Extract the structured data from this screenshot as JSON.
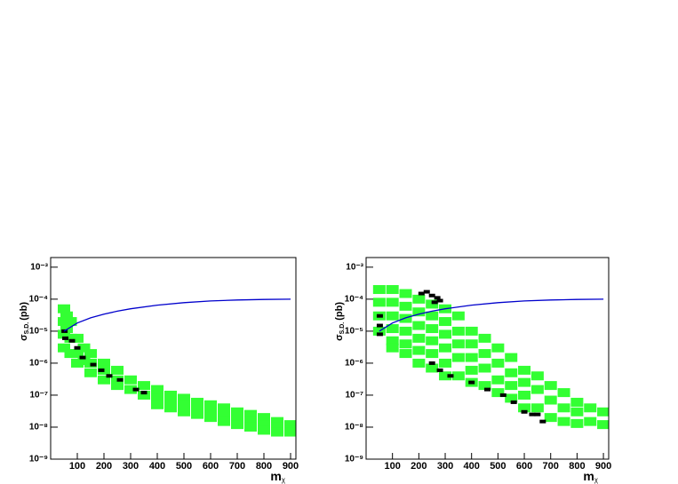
{
  "chart_data": [
    {
      "type": "scatter",
      "log_y": true,
      "x_label": "m",
      "x_label_sub": "χ",
      "y_label": "σ",
      "y_label_sub": "S.D.",
      "y_label_unit": "(pb)",
      "xlim": [
        0,
        920
      ],
      "xticks": [
        100,
        200,
        300,
        400,
        500,
        600,
        700,
        800,
        900
      ],
      "ylim": [
        1e-09,
        0.002
      ],
      "yticks": [
        {
          "value": 1e-09,
          "label": "10⁻⁹"
        },
        {
          "value": 1e-08,
          "label": "10⁻⁸"
        },
        {
          "value": 1e-07,
          "label": "10⁻⁷"
        },
        {
          "value": 1e-06,
          "label": "10⁻⁶"
        },
        {
          "value": 1e-05,
          "label": "10⁻⁵"
        },
        {
          "value": 0.0001,
          "label": "10⁻⁴"
        },
        {
          "value": 0.001,
          "label": "10⁻³"
        }
      ],
      "series": [
        {
          "style": "markers",
          "color": "#33ff33",
          "x": [
            50,
            50,
            50,
            50,
            60,
            60,
            75,
            75,
            75,
            100,
            100,
            100,
            125,
            125,
            150,
            150,
            150,
            200,
            200,
            200,
            250,
            250,
            250,
            300,
            300,
            350,
            350,
            400,
            400,
            400,
            450,
            450,
            450,
            500,
            500,
            500,
            550,
            550,
            550,
            600,
            600,
            600,
            650,
            650,
            650,
            700,
            700,
            700,
            750,
            750,
            750,
            800,
            800,
            800,
            850,
            850,
            850,
            900,
            900,
            900
          ],
          "values": [
            5e-05,
            2e-05,
            8e-06,
            3e-06,
            3e-05,
            1.2e-05,
            2e-05,
            6e-06,
            2e-06,
            6e-06,
            2e-06,
            1e-06,
            3e-06,
            1.2e-06,
            2e-06,
            1e-06,
            5e-07,
            1e-06,
            6e-07,
            3e-07,
            6e-07,
            3e-07,
            2e-07,
            3e-07,
            1.5e-07,
            2e-07,
            1e-07,
            1.5e-07,
            8e-08,
            5e-08,
            1e-07,
            6e-08,
            4e-08,
            8e-08,
            5e-08,
            3e-08,
            6e-08,
            4e-08,
            2.5e-08,
            5e-08,
            3e-08,
            2e-08,
            4e-08,
            2.5e-08,
            1.5e-08,
            3e-08,
            2e-08,
            1.2e-08,
            2.5e-08,
            1.5e-08,
            1e-08,
            2e-08,
            1.2e-08,
            8e-09,
            1.5e-08,
            1e-08,
            7e-09,
            1.2e-08,
            8e-09,
            7e-09
          ]
        },
        {
          "style": "markers",
          "color": "#000000",
          "x": [
            52,
            55,
            80,
            100,
            120,
            160,
            190,
            220,
            260,
            320,
            350
          ],
          "values": [
            1e-05,
            6e-06,
            5e-06,
            3e-06,
            1.5e-06,
            9e-07,
            6e-07,
            4e-07,
            3e-07,
            1.5e-07,
            1.2e-07
          ]
        },
        {
          "style": "line",
          "color": "#0000cc",
          "x": [
            50,
            100,
            150,
            200,
            250,
            300,
            400,
            500,
            600,
            700,
            800,
            900
          ],
          "values": [
            1e-05,
            1.8e-05,
            2.6e-05,
            3.4e-05,
            4.2e-05,
            5e-05,
            6.5e-05,
            7.8e-05,
            8.8e-05,
            9.4e-05,
            9.8e-05,
            0.0001
          ]
        }
      ]
    },
    {
      "type": "scatter",
      "log_y": true,
      "x_label": "m",
      "x_label_sub": "χ",
      "y_label": "σ",
      "y_label_sub": "S.D.",
      "y_label_unit": "(pb)",
      "xlim": [
        0,
        920
      ],
      "xticks": [
        100,
        200,
        300,
        400,
        500,
        600,
        700,
        800,
        900
      ],
      "ylim": [
        1e-09,
        0.002
      ],
      "yticks": [
        {
          "value": 1e-09,
          "label": "10⁻⁹"
        },
        {
          "value": 1e-08,
          "label": "10⁻⁸"
        },
        {
          "value": 1e-07,
          "label": "10⁻⁷"
        },
        {
          "value": 1e-06,
          "label": "10⁻⁶"
        },
        {
          "value": 1e-05,
          "label": "10⁻⁵"
        },
        {
          "value": 0.0001,
          "label": "10⁻⁴"
        },
        {
          "value": 0.001,
          "label": "10⁻³"
        }
      ],
      "series": [
        {
          "style": "markers",
          "color": "#33ff33",
          "x": [
            50,
            50,
            50,
            50,
            100,
            100,
            100,
            100,
            100,
            100,
            150,
            150,
            150,
            150,
            150,
            150,
            200,
            200,
            200,
            200,
            200,
            200,
            250,
            250,
            250,
            250,
            250,
            250,
            300,
            300,
            300,
            300,
            300,
            300,
            350,
            350,
            350,
            350,
            350,
            400,
            400,
            400,
            400,
            400,
            450,
            450,
            450,
            450,
            500,
            500,
            500,
            500,
            550,
            550,
            550,
            550,
            600,
            600,
            600,
            600,
            650,
            650,
            650,
            700,
            700,
            700,
            750,
            750,
            750,
            800,
            800,
            800,
            850,
            850,
            900,
            900
          ],
          "values": [
            0.0002,
            8e-05,
            3e-05,
            1e-05,
            0.0002,
            8e-05,
            3e-05,
            1.2e-05,
            5e-06,
            3e-06,
            0.00015,
            6e-05,
            2.5e-05,
            1e-05,
            4e-06,
            2e-06,
            0.0001,
            4e-05,
            1.5e-05,
            6e-06,
            2.5e-06,
            1e-06,
            7e-05,
            3e-05,
            1.2e-05,
            5e-06,
            2e-06,
            7e-07,
            5e-05,
            2e-05,
            8e-06,
            3e-06,
            1e-06,
            4e-07,
            3e-05,
            1e-05,
            4e-06,
            1.5e-06,
            4e-07,
            1e-05,
            4e-06,
            1.5e-06,
            6e-07,
            2.5e-07,
            6e-06,
            2e-06,
            7e-07,
            2e-07,
            3e-06,
            1e-06,
            3e-07,
            1.2e-07,
            1.5e-06,
            5e-07,
            2e-07,
            8e-08,
            6e-07,
            2.5e-07,
            1e-07,
            4e-08,
            4e-07,
            1.5e-07,
            4e-08,
            2e-07,
            7e-08,
            2e-08,
            1.2e-07,
            4e-08,
            1.5e-08,
            6e-08,
            3e-08,
            1.3e-08,
            4e-08,
            1.5e-08,
            3e-08,
            1.2e-08
          ]
        },
        {
          "style": "markers",
          "color": "#000000",
          "x": [
            52,
            52,
            52,
            210,
            230,
            250,
            270,
            260,
            280,
            250,
            280,
            320,
            400,
            460,
            520,
            560,
            600,
            630,
            650,
            670
          ],
          "values": [
            3e-05,
            1.5e-05,
            8e-06,
            0.00015,
            0.00017,
            0.00013,
            0.00011,
            8e-05,
            9e-05,
            1e-06,
            6e-07,
            4e-07,
            2.5e-07,
            1.5e-07,
            1e-07,
            6e-08,
            3e-08,
            2.5e-08,
            2.5e-08,
            1.5e-08
          ]
        },
        {
          "style": "line",
          "color": "#0000cc",
          "x": [
            50,
            100,
            150,
            200,
            250,
            300,
            400,
            500,
            600,
            700,
            800,
            900
          ],
          "values": [
            1e-05,
            1.8e-05,
            2.6e-05,
            3.4e-05,
            4.2e-05,
            5e-05,
            6.5e-05,
            7.8e-05,
            8.8e-05,
            9.4e-05,
            9.8e-05,
            0.0001
          ]
        }
      ]
    }
  ]
}
